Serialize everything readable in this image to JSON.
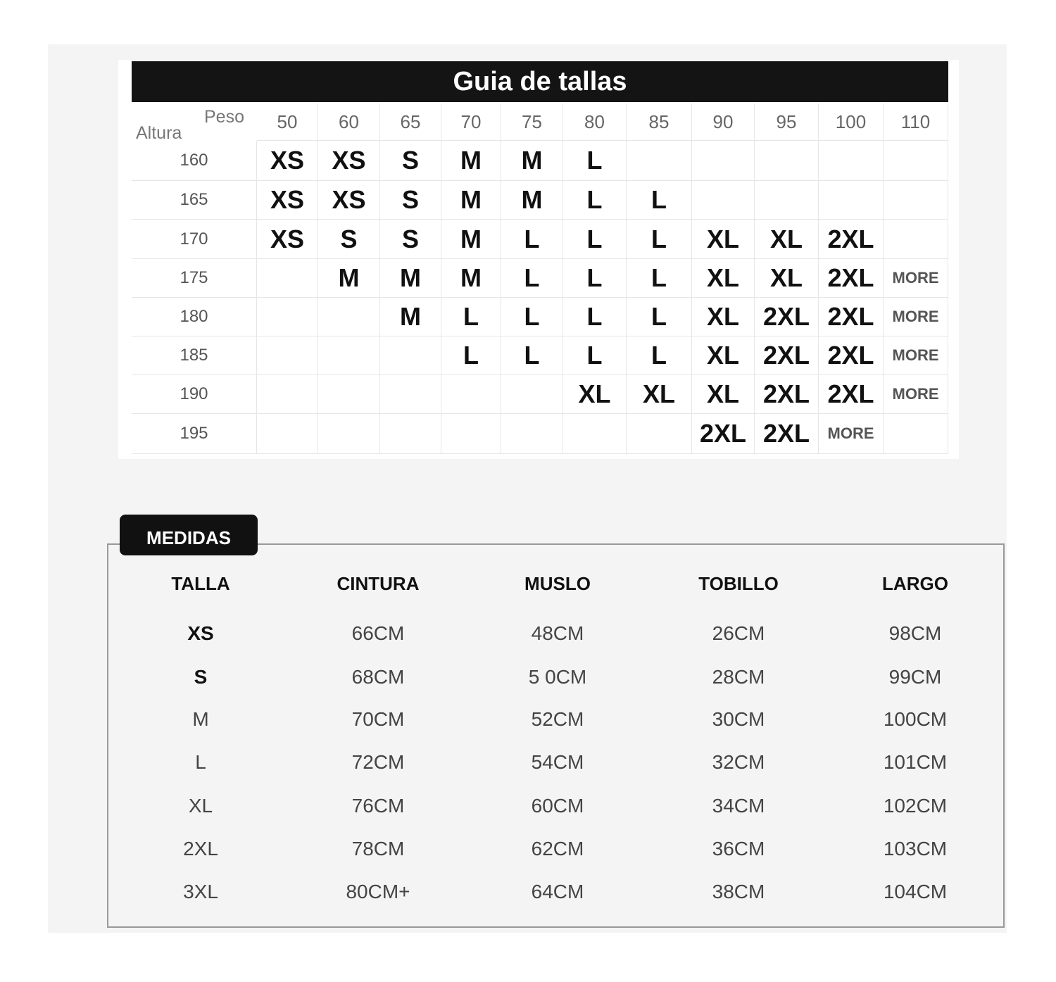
{
  "title": "Guia de tallas",
  "corner": {
    "weight_label": "Peso",
    "height_label": "Altura"
  },
  "weights": [
    "50",
    "60",
    "65",
    "70",
    "75",
    "80",
    "85",
    "90",
    "95",
    "100",
    "110"
  ],
  "rows": [
    {
      "height": "160",
      "sizes": [
        "XS",
        "XS",
        "S",
        "M",
        "M",
        "L",
        "",
        "",
        "",
        "",
        ""
      ]
    },
    {
      "height": "165",
      "sizes": [
        "XS",
        "XS",
        "S",
        "M",
        "M",
        "L",
        "L",
        "",
        "",
        "",
        ""
      ]
    },
    {
      "height": "170",
      "sizes": [
        "XS",
        "S",
        "S",
        "M",
        "L",
        "L",
        "L",
        "XL",
        "XL",
        "2XL",
        ""
      ]
    },
    {
      "height": "175",
      "sizes": [
        "",
        "M",
        "M",
        "M",
        "L",
        "L",
        "L",
        "XL",
        "XL",
        "2XL",
        "MORE"
      ]
    },
    {
      "height": "180",
      "sizes": [
        "",
        "",
        "M",
        "L",
        "L",
        "L",
        "L",
        "XL",
        "2XL",
        "2XL",
        "MORE"
      ]
    },
    {
      "height": "185",
      "sizes": [
        "",
        "",
        "",
        "L",
        "L",
        "L",
        "L",
        "XL",
        "2XL",
        "2XL",
        "MORE"
      ]
    },
    {
      "height": "190",
      "sizes": [
        "",
        "",
        "",
        "",
        "",
        "XL",
        "XL",
        "XL",
        "2XL",
        "2XL",
        "MORE"
      ]
    },
    {
      "height": "195",
      "sizes": [
        "",
        "",
        "",
        "",
        "",
        "",
        "",
        "2XL",
        "2XL",
        "MORE",
        ""
      ]
    }
  ],
  "medidas": {
    "tab_label": "MEDIDAS",
    "headers": [
      "TALLA",
      "CINTURA",
      "MUSLO",
      "TOBILLO",
      "LARGO"
    ],
    "rows": [
      [
        "XS",
        "66CM",
        "48CM",
        "26CM",
        "98CM"
      ],
      [
        "S",
        "68CM",
        "5 0CM",
        "28CM",
        "99CM"
      ],
      [
        "M",
        "70CM",
        "52CM",
        "30CM",
        "100CM"
      ],
      [
        "L",
        "72CM",
        "54CM",
        "32CM",
        "101CM"
      ],
      [
        "XL",
        "76CM",
        "60CM",
        "34CM",
        "102CM"
      ],
      [
        "2XL",
        "78CM",
        "62CM",
        "36CM",
        "103CM"
      ],
      [
        "3XL",
        "80CM+",
        "64CM",
        "38CM",
        "104CM"
      ]
    ]
  }
}
